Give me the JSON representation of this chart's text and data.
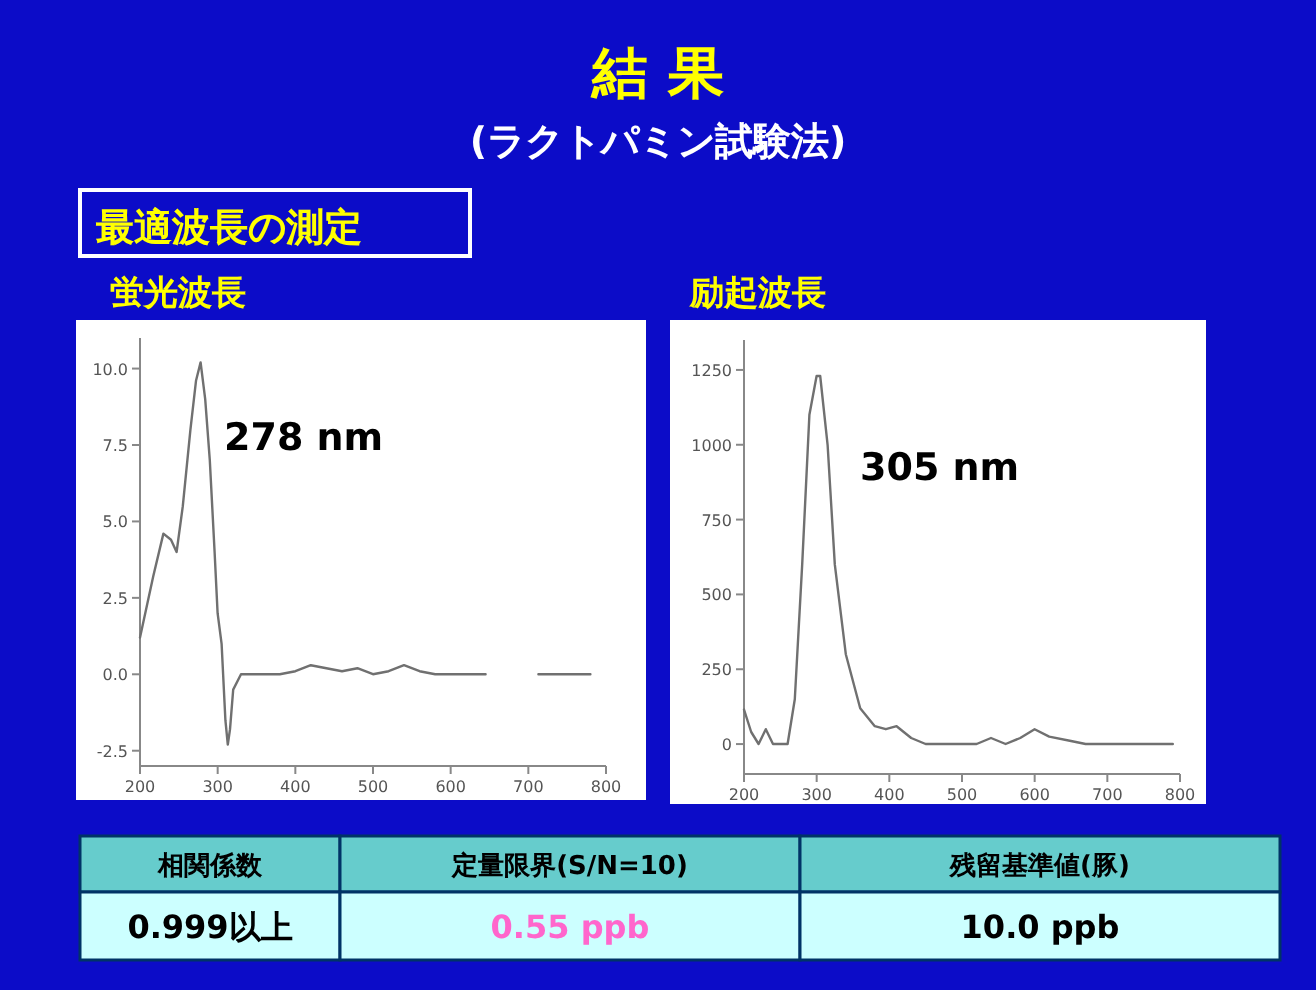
{
  "chart_data": [
    {
      "type": "other",
      "title": "結 果",
      "subtitle": "(ラクトパミン試験法)",
      "annotations": [
        "最適波長の測定"
      ]
    },
    {
      "type": "line",
      "title": "蛍光波長",
      "annotations": [
        "278 nm"
      ],
      "color": "#707070",
      "x": [
        200,
        217,
        230,
        240,
        247,
        255,
        265,
        272,
        278,
        284,
        290,
        296,
        300,
        305,
        310,
        313,
        316,
        320,
        330,
        380,
        400,
        420,
        440,
        460,
        480,
        500,
        520,
        540,
        560,
        580,
        600,
        645,
        680,
        713,
        780
      ],
      "values": [
        1.2,
        3.2,
        4.6,
        4.4,
        4.0,
        5.5,
        8.0,
        9.6,
        10.2,
        9.0,
        7.0,
        4.0,
        2.0,
        1.0,
        -1.5,
        -2.3,
        -1.8,
        -0.5,
        0,
        0,
        0.1,
        0.3,
        0.2,
        0.1,
        0.2,
        0,
        0.1,
        0.3,
        0.1,
        0,
        0,
        0,
        null,
        0,
        0
      ],
      "xlim": [
        200,
        800
      ],
      "ylim": [
        -3,
        11
      ],
      "xticks": [
        200,
        300,
        400,
        500,
        600,
        700,
        800
      ],
      "yticks": [
        -2.5,
        {
          "value": 0,
          "label": "0.0"
        },
        2.5,
        {
          "value": 5,
          "label": "5.0"
        },
        7.5,
        {
          "value": 10,
          "label": "10.0"
        }
      ]
    },
    {
      "type": "line",
      "title": "励起波長",
      "annotations": [
        "305 nm"
      ],
      "color": "#707070",
      "x": [
        200,
        210,
        220,
        230,
        240,
        260,
        270,
        280,
        290,
        300,
        305,
        315,
        325,
        340,
        360,
        380,
        395,
        410,
        430,
        450,
        480,
        520,
        540,
        560,
        580,
        600,
        620,
        650,
        670,
        710,
        790
      ],
      "values": [
        115,
        40,
        0,
        50,
        0,
        0,
        150,
        600,
        1100,
        1230,
        1230,
        1000,
        600,
        300,
        120,
        60,
        50,
        60,
        20,
        0,
        0,
        0,
        20,
        0,
        20,
        50,
        25,
        10,
        0,
        0,
        0
      ],
      "xlim": [
        200,
        800
      ],
      "ylim": [
        -100,
        1350
      ],
      "xticks": [
        200,
        300,
        400,
        500,
        600,
        700,
        800
      ],
      "yticks": [
        0,
        250,
        500,
        750,
        1000,
        1250
      ]
    },
    {
      "type": "other",
      "annotations": [
        "相関係数",
        "定量限界(S/N=10)",
        "残留基準値(豚)",
        "0.999以上",
        "0.55 ppb",
        "10.0 ppb"
      ]
    }
  ]
}
